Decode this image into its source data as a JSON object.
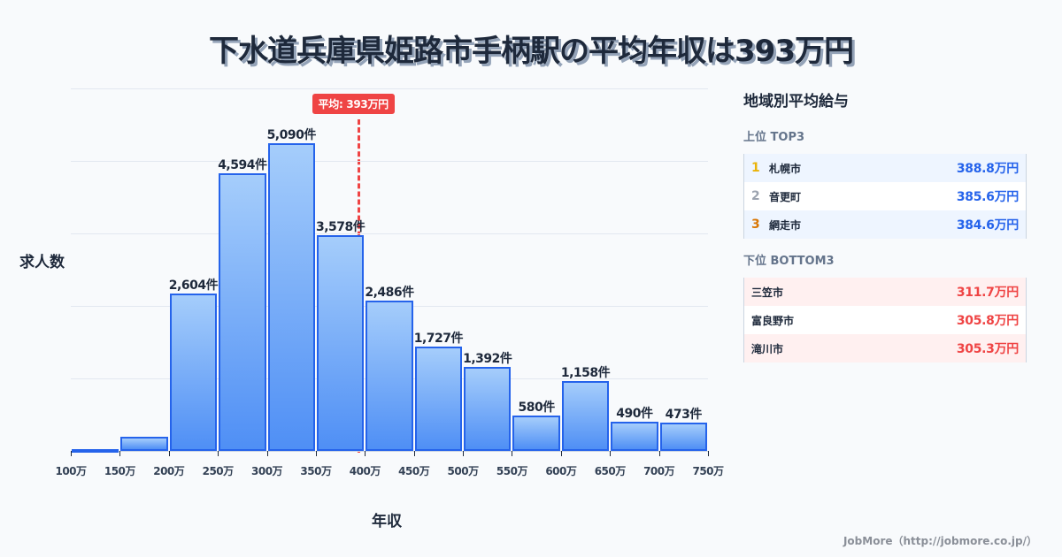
{
  "title": "下水道兵庫県姫路市手柄駅の平均年収は393万円",
  "axis": {
    "ylabel": "求人数",
    "xlabel": "年収"
  },
  "average": {
    "label": "平均: 393万円",
    "value": 393,
    "color": "#ef4444"
  },
  "chart_data": {
    "type": "bar",
    "title": "下水道兵庫県姫路市手柄駅の平均年収は393万円",
    "xlabel": "年収",
    "ylabel": "求人数",
    "bins": [
      "100-150万",
      "150-200万",
      "200-250万",
      "250-300万",
      "300-350万",
      "350-400万",
      "400-450万",
      "450-500万",
      "500-550万",
      "550-600万",
      "600-650万",
      "650-700万",
      "700-750万"
    ],
    "x_ticks": [
      "100万",
      "150万",
      "200万",
      "250万",
      "300万",
      "350万",
      "400万",
      "450万",
      "500万",
      "550万",
      "600万",
      "650万",
      "700万",
      "750万"
    ],
    "values": [
      30,
      233,
      2604,
      4594,
      5090,
      3578,
      2486,
      1727,
      1392,
      580,
      1158,
      490,
      473
    ],
    "labels": [
      "",
      "",
      "2,604件",
      "4,594件",
      "5,090件",
      "3,578件",
      "2,486件",
      "1,727件",
      "1,392件",
      "580件",
      "1,158件",
      "490件",
      "473件"
    ],
    "ylim": [
      0,
      6000
    ],
    "grid": true,
    "annotations": [
      {
        "type": "vline",
        "x": 393,
        "label": "平均: 393万円",
        "style": "dashed",
        "color": "#ef4444"
      }
    ],
    "bar_color": "#60a5fa",
    "bar_border": "#2563eb"
  },
  "panel": {
    "title": "地域別平均給与",
    "top_title": "上位 TOP3",
    "top": [
      {
        "rank": "1",
        "name": "札幌市",
        "value": "388.8万円",
        "rank_color": "#eab308"
      },
      {
        "rank": "2",
        "name": "音更町",
        "value": "385.6万円",
        "rank_color": "#9ca3af"
      },
      {
        "rank": "3",
        "name": "網走市",
        "value": "384.6万円",
        "rank_color": "#d97706"
      }
    ],
    "bottom_title": "下位 BOTTOM3",
    "bottom": [
      {
        "name": "三笠市",
        "value": "311.7万円"
      },
      {
        "name": "富良野市",
        "value": "305.8万円"
      },
      {
        "name": "滝川市",
        "value": "305.3万円"
      }
    ]
  },
  "footer": "JobMore（http://jobmore.co.jp/）"
}
